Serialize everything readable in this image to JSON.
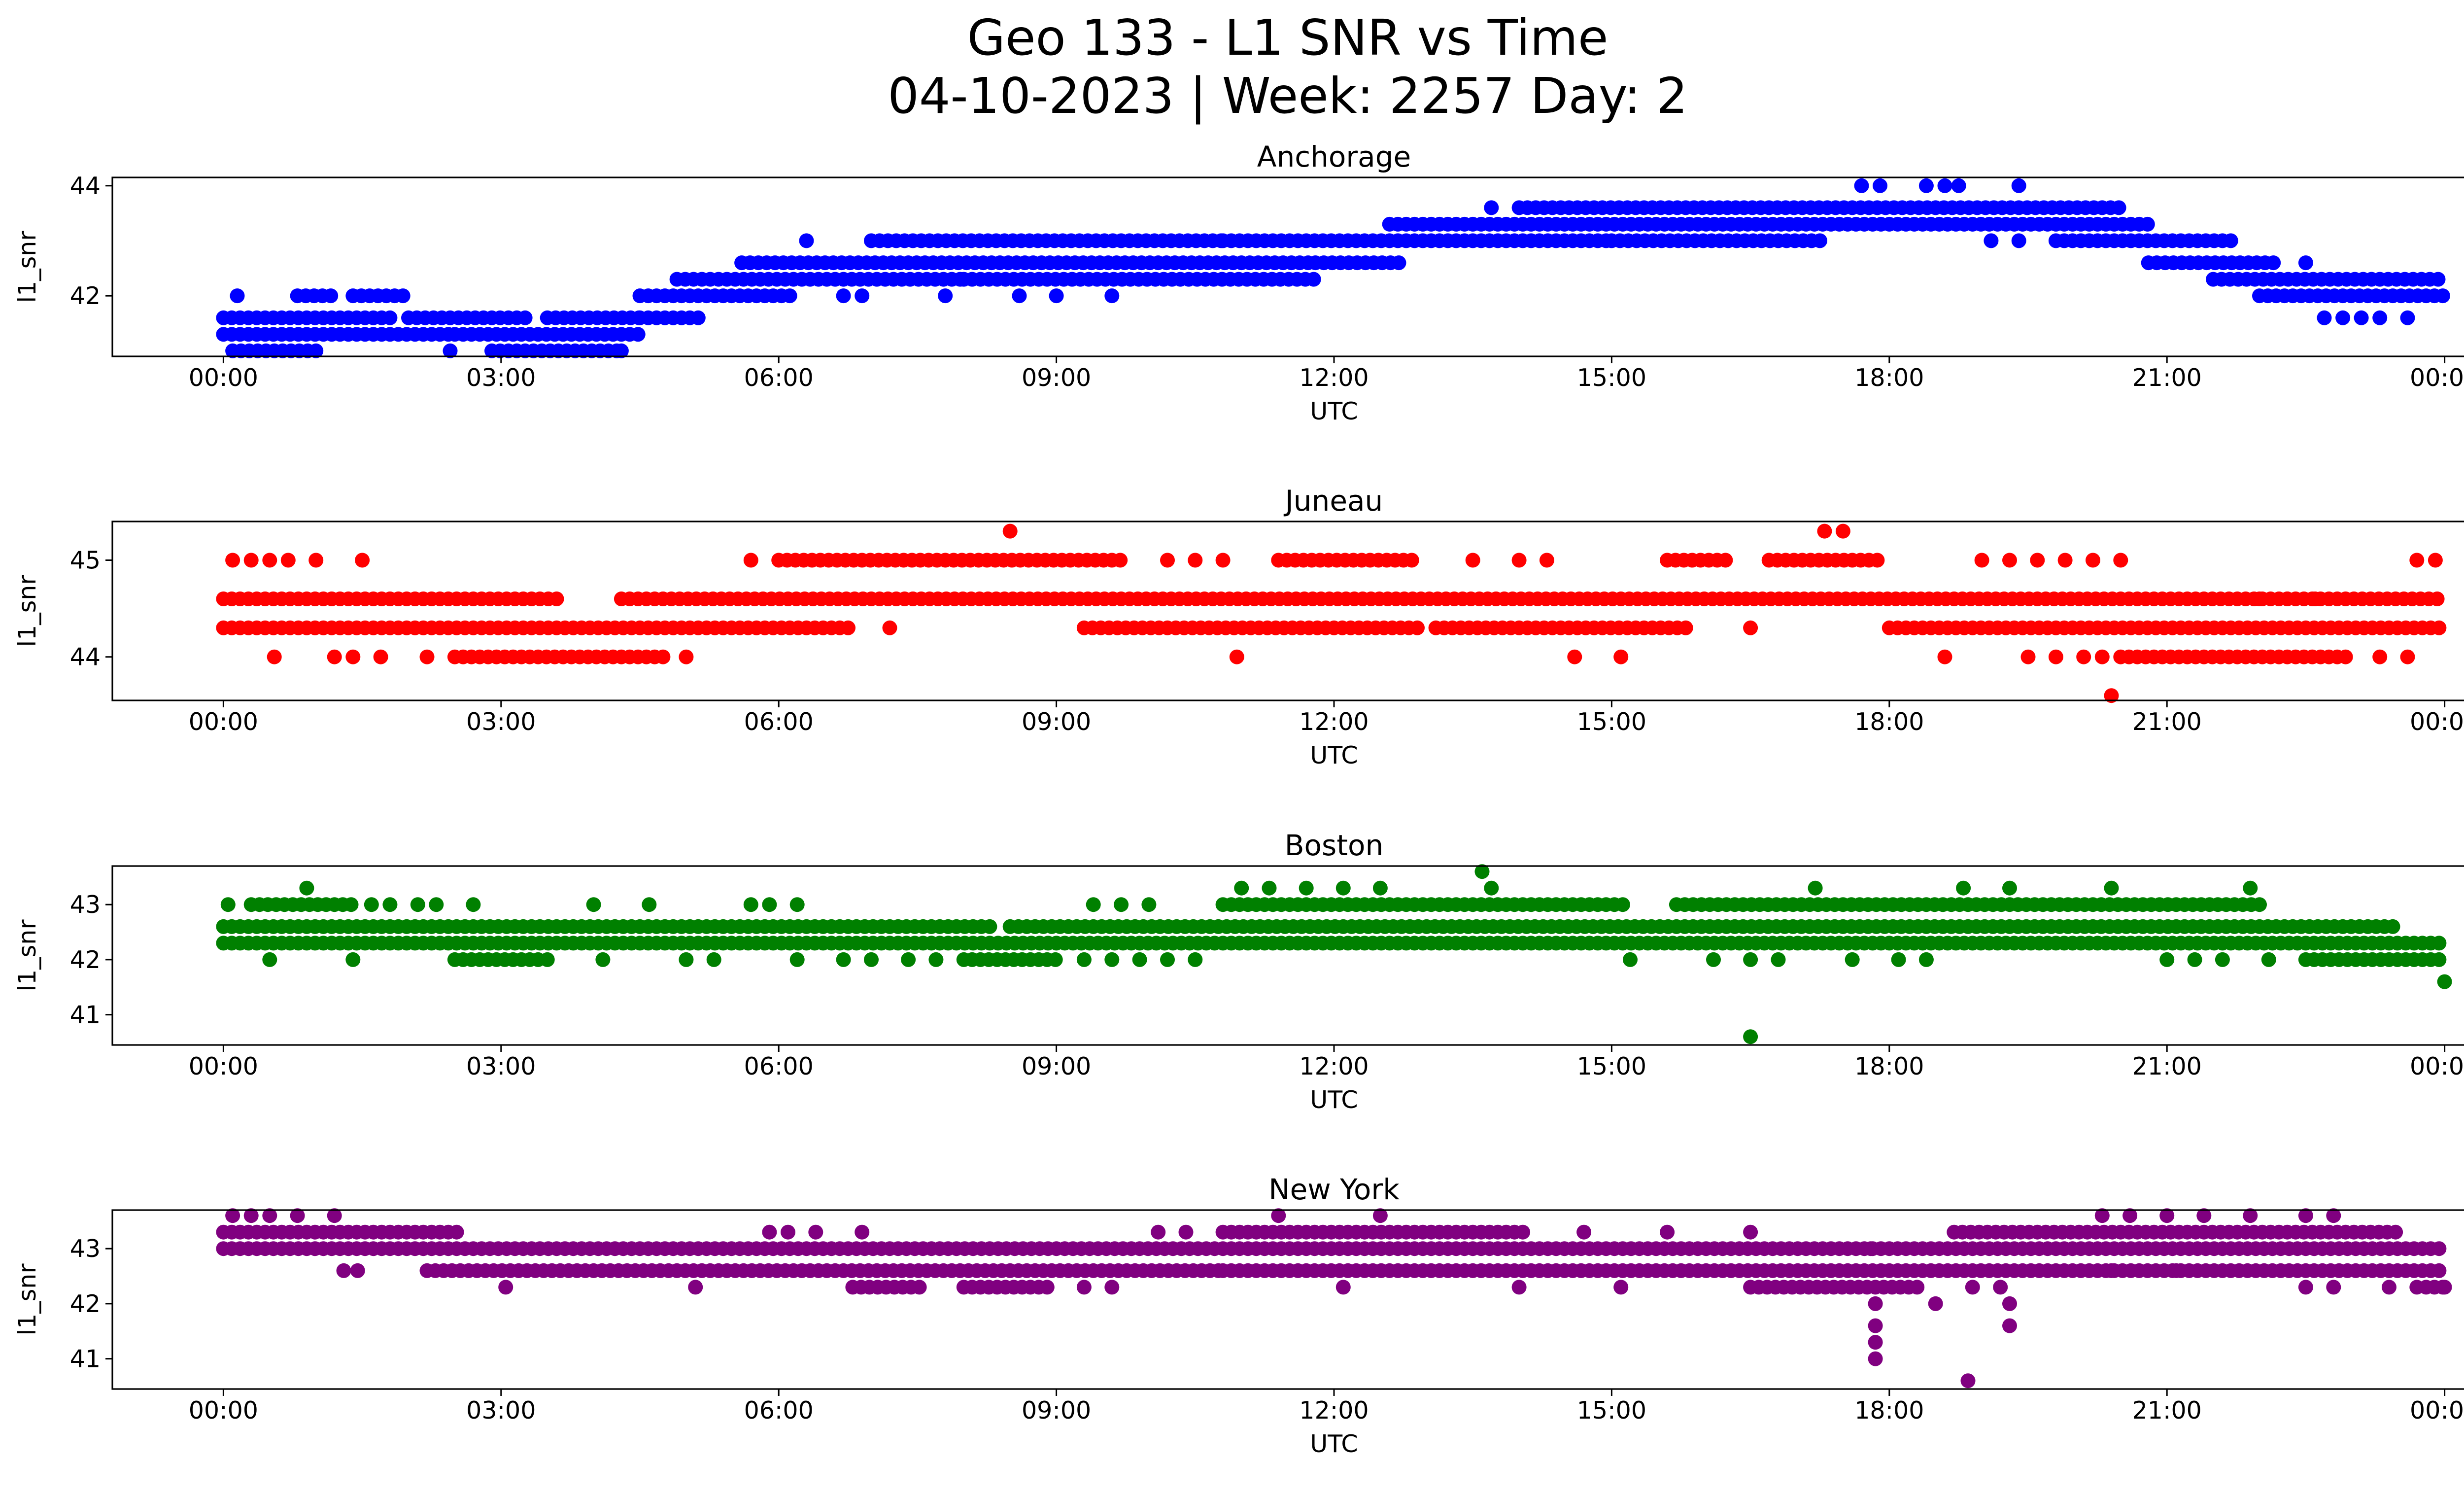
{
  "figure": {
    "title_line1": "Geo 133 - L1 SNR vs Time",
    "title_line2": "04-10-2023 | Week: 2257 Day: 2"
  },
  "chart_data": [
    {
      "type": "scatter",
      "title": "Anchorage",
      "xlabel": "UTC",
      "ylabel": "l1_snr",
      "color": "#0000ff",
      "x_unit": "hours UTC",
      "xlim": [
        -1.2,
        25.2
      ],
      "ylim": [
        40.9,
        44.15
      ],
      "xticks": [
        "00:00",
        "03:00",
        "06:00",
        "09:00",
        "12:00",
        "15:00",
        "18:00",
        "21:00",
        "00:00"
      ],
      "yticks": [
        42,
        44
      ],
      "segments": [
        {
          "y": 41.0,
          "from": 0.1,
          "to": 1.0
        },
        {
          "y": 41.3,
          "from": 0.0,
          "to": 2.5
        },
        {
          "y": 41.6,
          "from": 0.0,
          "to": 1.8
        },
        {
          "y": 42.0,
          "from": 0.8,
          "to": 1.2
        },
        {
          "y": 42.0,
          "from": 1.4,
          "to": 2.0
        },
        {
          "y": 41.3,
          "from": 2.5,
          "to": 4.5
        },
        {
          "y": 41.6,
          "from": 2.0,
          "to": 3.3
        },
        {
          "y": 41.0,
          "from": 2.9,
          "to": 4.3
        },
        {
          "y": 41.6,
          "from": 3.5,
          "to": 4.5
        },
        {
          "y": 41.6,
          "from": 4.5,
          "to": 5.2
        },
        {
          "y": 42.0,
          "from": 4.5,
          "to": 6.2
        },
        {
          "y": 42.3,
          "from": 4.9,
          "to": 8.0
        },
        {
          "y": 42.6,
          "from": 5.6,
          "to": 11.8
        },
        {
          "y": 42.3,
          "from": 8.0,
          "to": 11.8
        },
        {
          "y": 43.0,
          "from": 7.0,
          "to": 10.8
        },
        {
          "y": 42.6,
          "from": 11.8,
          "to": 12.7
        },
        {
          "y": 43.0,
          "from": 10.8,
          "to": 15.0
        },
        {
          "y": 43.3,
          "from": 12.6,
          "to": 20.8
        },
        {
          "y": 43.6,
          "from": 14.0,
          "to": 20.5
        },
        {
          "y": 43.0,
          "from": 15.0,
          "to": 17.3
        },
        {
          "y": 43.0,
          "from": 19.8,
          "to": 21.7
        },
        {
          "y": 42.6,
          "from": 20.8,
          "to": 22.2
        },
        {
          "y": 42.3,
          "from": 21.5,
          "to": 24.0
        },
        {
          "y": 42.0,
          "from": 22.0,
          "to": 24.0
        }
      ],
      "outliers": [
        {
          "x": 0.15,
          "y": 42.0
        },
        {
          "x": 2.45,
          "y": 41.0
        },
        {
          "x": 4.3,
          "y": 41.0
        },
        {
          "x": 6.3,
          "y": 43.0
        },
        {
          "x": 6.7,
          "y": 42.0
        },
        {
          "x": 6.9,
          "y": 42.0
        },
        {
          "x": 7.8,
          "y": 42.0
        },
        {
          "x": 8.6,
          "y": 42.0
        },
        {
          "x": 9.0,
          "y": 42.0
        },
        {
          "x": 9.6,
          "y": 42.0
        },
        {
          "x": 13.7,
          "y": 43.6
        },
        {
          "x": 17.7,
          "y": 44.0
        },
        {
          "x": 17.9,
          "y": 44.0
        },
        {
          "x": 18.4,
          "y": 44.0
        },
        {
          "x": 18.6,
          "y": 44.0
        },
        {
          "x": 18.75,
          "y": 44.0
        },
        {
          "x": 19.4,
          "y": 44.0
        },
        {
          "x": 19.1,
          "y": 43.0
        },
        {
          "x": 19.4,
          "y": 43.0
        },
        {
          "x": 22.5,
          "y": 42.6
        },
        {
          "x": 22.7,
          "y": 41.6
        },
        {
          "x": 22.9,
          "y": 41.6
        },
        {
          "x": 23.1,
          "y": 41.6
        },
        {
          "x": 23.3,
          "y": 41.6
        },
        {
          "x": 23.6,
          "y": 41.6
        }
      ]
    },
    {
      "type": "scatter",
      "title": "Juneau",
      "xlabel": "UTC",
      "ylabel": "l1_snr",
      "color": "#ff0000",
      "x_unit": "hours UTC",
      "xlim": [
        -1.2,
        25.2
      ],
      "ylim": [
        43.55,
        45.4
      ],
      "xticks": [
        "00:00",
        "03:00",
        "06:00",
        "09:00",
        "12:00",
        "15:00",
        "18:00",
        "21:00",
        "00:00"
      ],
      "yticks": [
        44,
        45
      ],
      "segments": [
        {
          "y": 44.6,
          "from": 0.0,
          "to": 3.6
        },
        {
          "y": 44.3,
          "from": 0.0,
          "to": 6.8
        },
        {
          "y": 44.0,
          "from": 2.5,
          "to": 4.8
        },
        {
          "y": 44.6,
          "from": 4.3,
          "to": 24.0
        },
        {
          "y": 44.3,
          "from": 9.3,
          "to": 12.9
        },
        {
          "y": 44.3,
          "from": 13.1,
          "to": 15.8
        },
        {
          "y": 45.0,
          "from": 6.0,
          "to": 9.7
        },
        {
          "y": 44.3,
          "from": 18.0,
          "to": 24.0
        },
        {
          "y": 44.0,
          "from": 20.5,
          "to": 23.0
        },
        {
          "y": 45.0,
          "from": 11.4,
          "to": 12.9
        },
        {
          "y": 45.0,
          "from": 16.7,
          "to": 17.9
        },
        {
          "y": 45.0,
          "from": 15.6,
          "to": 16.3
        }
      ],
      "outliers": [
        {
          "x": 0.1,
          "y": 45.0
        },
        {
          "x": 0.3,
          "y": 45.0
        },
        {
          "x": 0.5,
          "y": 45.0
        },
        {
          "x": 0.7,
          "y": 45.0
        },
        {
          "x": 1.0,
          "y": 45.0
        },
        {
          "x": 1.5,
          "y": 45.0
        },
        {
          "x": 0.55,
          "y": 44.0
        },
        {
          "x": 1.2,
          "y": 44.0
        },
        {
          "x": 1.4,
          "y": 44.0
        },
        {
          "x": 1.7,
          "y": 44.0
        },
        {
          "x": 2.2,
          "y": 44.0
        },
        {
          "x": 5.0,
          "y": 44.0
        },
        {
          "x": 5.7,
          "y": 45.0
        },
        {
          "x": 8.5,
          "y": 45.3
        },
        {
          "x": 7.2,
          "y": 44.3
        },
        {
          "x": 10.2,
          "y": 45.0
        },
        {
          "x": 10.5,
          "y": 45.0
        },
        {
          "x": 10.8,
          "y": 45.0
        },
        {
          "x": 10.95,
          "y": 44.0
        },
        {
          "x": 13.5,
          "y": 45.0
        },
        {
          "x": 14.0,
          "y": 45.0
        },
        {
          "x": 14.3,
          "y": 45.0
        },
        {
          "x": 14.6,
          "y": 44.0
        },
        {
          "x": 15.1,
          "y": 44.0
        },
        {
          "x": 16.5,
          "y": 44.3
        },
        {
          "x": 17.3,
          "y": 45.3
        },
        {
          "x": 17.5,
          "y": 45.3
        },
        {
          "x": 18.6,
          "y": 44.0
        },
        {
          "x": 19.0,
          "y": 45.0
        },
        {
          "x": 19.3,
          "y": 45.0
        },
        {
          "x": 19.6,
          "y": 45.0
        },
        {
          "x": 19.9,
          "y": 45.0
        },
        {
          "x": 20.2,
          "y": 45.0
        },
        {
          "x": 20.5,
          "y": 45.0
        },
        {
          "x": 19.5,
          "y": 44.0
        },
        {
          "x": 19.8,
          "y": 44.0
        },
        {
          "x": 20.1,
          "y": 44.0
        },
        {
          "x": 20.3,
          "y": 44.0
        },
        {
          "x": 20.4,
          "y": 43.6
        },
        {
          "x": 23.3,
          "y": 44.0
        },
        {
          "x": 23.6,
          "y": 44.0
        },
        {
          "x": 23.7,
          "y": 45.0
        },
        {
          "x": 23.9,
          "y": 45.0
        },
        {
          "x": 22.0,
          "y": 44.6
        },
        {
          "x": 22.3,
          "y": 44.6
        },
        {
          "x": 22.6,
          "y": 44.6
        }
      ]
    },
    {
      "type": "scatter",
      "title": "Boston",
      "xlabel": "UTC",
      "ylabel": "l1_snr",
      "color": "#008000",
      "x_unit": "hours UTC",
      "xlim": [
        -1.2,
        25.2
      ],
      "ylim": [
        40.45,
        43.7
      ],
      "xticks": [
        "00:00",
        "03:00",
        "06:00",
        "09:00",
        "12:00",
        "15:00",
        "18:00",
        "21:00",
        "00:00"
      ],
      "yticks": [
        41,
        42,
        43
      ],
      "segments": [
        {
          "y": 42.6,
          "from": 0.0,
          "to": 8.3
        },
        {
          "y": 42.3,
          "from": 0.0,
          "to": 24.0
        },
        {
          "y": 42.6,
          "from": 8.5,
          "to": 23.5
        },
        {
          "y": 43.0,
          "from": 10.8,
          "to": 15.2
        },
        {
          "y": 43.0,
          "from": 15.7,
          "to": 22.0
        },
        {
          "y": 42.0,
          "from": 2.5,
          "to": 3.4
        },
        {
          "y": 42.0,
          "from": 8.0,
          "to": 9.0
        },
        {
          "y": 42.0,
          "from": 22.5,
          "to": 24.0
        },
        {
          "y": 43.0,
          "from": 0.3,
          "to": 1.4
        }
      ],
      "outliers": [
        {
          "x": 0.05,
          "y": 43.0
        },
        {
          "x": 0.5,
          "y": 42.0
        },
        {
          "x": 0.9,
          "y": 43.3
        },
        {
          "x": 1.4,
          "y": 42.0
        },
        {
          "x": 1.6,
          "y": 43.0
        },
        {
          "x": 1.8,
          "y": 43.0
        },
        {
          "x": 2.1,
          "y": 43.0
        },
        {
          "x": 2.3,
          "y": 43.0
        },
        {
          "x": 2.7,
          "y": 43.0
        },
        {
          "x": 3.5,
          "y": 42.0
        },
        {
          "x": 4.0,
          "y": 43.0
        },
        {
          "x": 4.1,
          "y": 42.0
        },
        {
          "x": 4.6,
          "y": 43.0
        },
        {
          "x": 5.0,
          "y": 42.0
        },
        {
          "x": 5.3,
          "y": 42.0
        },
        {
          "x": 5.7,
          "y": 43.0
        },
        {
          "x": 5.9,
          "y": 43.0
        },
        {
          "x": 6.2,
          "y": 43.0
        },
        {
          "x": 6.2,
          "y": 42.0
        },
        {
          "x": 6.7,
          "y": 42.0
        },
        {
          "x": 7.0,
          "y": 42.0
        },
        {
          "x": 7.4,
          "y": 42.0
        },
        {
          "x": 7.7,
          "y": 42.0
        },
        {
          "x": 9.3,
          "y": 42.0
        },
        {
          "x": 9.6,
          "y": 42.0
        },
        {
          "x": 9.9,
          "y": 42.0
        },
        {
          "x": 10.2,
          "y": 42.0
        },
        {
          "x": 10.5,
          "y": 42.0
        },
        {
          "x": 9.4,
          "y": 43.0
        },
        {
          "x": 9.7,
          "y": 43.0
        },
        {
          "x": 10.0,
          "y": 43.0
        },
        {
          "x": 11.0,
          "y": 43.3
        },
        {
          "x": 11.3,
          "y": 43.3
        },
        {
          "x": 11.7,
          "y": 43.3
        },
        {
          "x": 12.1,
          "y": 43.3
        },
        {
          "x": 12.5,
          "y": 43.3
        },
        {
          "x": 13.6,
          "y": 43.6
        },
        {
          "x": 13.7,
          "y": 43.3
        },
        {
          "x": 15.2,
          "y": 42.0
        },
        {
          "x": 16.1,
          "y": 42.0
        },
        {
          "x": 16.5,
          "y": 42.0
        },
        {
          "x": 16.5,
          "y": 40.6
        },
        {
          "x": 16.8,
          "y": 42.0
        },
        {
          "x": 17.2,
          "y": 43.3
        },
        {
          "x": 17.6,
          "y": 42.0
        },
        {
          "x": 18.1,
          "y": 42.0
        },
        {
          "x": 18.4,
          "y": 42.0
        },
        {
          "x": 18.8,
          "y": 43.3
        },
        {
          "x": 19.3,
          "y": 43.3
        },
        {
          "x": 20.4,
          "y": 43.3
        },
        {
          "x": 21.0,
          "y": 42.0
        },
        {
          "x": 21.3,
          "y": 42.0
        },
        {
          "x": 21.6,
          "y": 42.0
        },
        {
          "x": 21.9,
          "y": 43.3
        },
        {
          "x": 22.1,
          "y": 42.0
        },
        {
          "x": 24.0,
          "y": 41.6
        }
      ]
    },
    {
      "type": "scatter",
      "title": "New York",
      "xlabel": "UTC",
      "ylabel": "l1_snr",
      "color": "#800080",
      "x_unit": "hours UTC",
      "xlim": [
        -1.2,
        25.2
      ],
      "ylim": [
        40.45,
        43.7
      ],
      "xticks": [
        "00:00",
        "03:00",
        "06:00",
        "09:00",
        "12:00",
        "15:00",
        "18:00",
        "21:00",
        "00:00"
      ],
      "yticks": [
        41,
        42,
        43
      ],
      "segments": [
        {
          "y": 43.0,
          "from": 0.0,
          "to": 24.0
        },
        {
          "y": 43.3,
          "from": 0.0,
          "to": 2.6
        },
        {
          "y": 42.6,
          "from": 2.2,
          "to": 10.8
        },
        {
          "y": 42.6,
          "from": 10.8,
          "to": 24.0
        },
        {
          "y": 42.3,
          "from": 6.8,
          "to": 7.6
        },
        {
          "y": 42.3,
          "from": 8.0,
          "to": 8.9
        },
        {
          "y": 42.3,
          "from": 16.5,
          "to": 18.3
        },
        {
          "y": 43.3,
          "from": 10.8,
          "to": 14.1
        },
        {
          "y": 43.3,
          "from": 18.7,
          "to": 23.5
        },
        {
          "y": 42.3,
          "from": 23.8,
          "to": 24.0
        }
      ],
      "outliers": [
        {
          "x": 0.1,
          "y": 43.6
        },
        {
          "x": 0.3,
          "y": 43.6
        },
        {
          "x": 0.5,
          "y": 43.6
        },
        {
          "x": 0.8,
          "y": 43.6
        },
        {
          "x": 1.2,
          "y": 43.6
        },
        {
          "x": 1.3,
          "y": 42.6
        },
        {
          "x": 1.45,
          "y": 42.6
        },
        {
          "x": 3.05,
          "y": 42.3
        },
        {
          "x": 5.1,
          "y": 42.3
        },
        {
          "x": 5.9,
          "y": 43.3
        },
        {
          "x": 6.1,
          "y": 43.3
        },
        {
          "x": 6.4,
          "y": 43.3
        },
        {
          "x": 6.9,
          "y": 43.3
        },
        {
          "x": 9.3,
          "y": 42.3
        },
        {
          "x": 9.6,
          "y": 42.3
        },
        {
          "x": 10.1,
          "y": 43.3
        },
        {
          "x": 10.4,
          "y": 43.3
        },
        {
          "x": 11.4,
          "y": 43.6
        },
        {
          "x": 12.1,
          "y": 42.3
        },
        {
          "x": 12.5,
          "y": 43.6
        },
        {
          "x": 14.0,
          "y": 42.3
        },
        {
          "x": 14.7,
          "y": 43.3
        },
        {
          "x": 15.1,
          "y": 42.3
        },
        {
          "x": 15.6,
          "y": 43.3
        },
        {
          "x": 16.5,
          "y": 43.3
        },
        {
          "x": 17.8,
          "y": 43.0
        },
        {
          "x": 17.85,
          "y": 42.0
        },
        {
          "x": 17.85,
          "y": 41.6
        },
        {
          "x": 17.85,
          "y": 41.3
        },
        {
          "x": 17.85,
          "y": 41.0
        },
        {
          "x": 18.5,
          "y": 42.0
        },
        {
          "x": 18.9,
          "y": 42.3
        },
        {
          "x": 18.85,
          "y": 40.6
        },
        {
          "x": 19.2,
          "y": 42.3
        },
        {
          "x": 19.3,
          "y": 42.0
        },
        {
          "x": 19.3,
          "y": 41.6
        },
        {
          "x": 20.3,
          "y": 43.6
        },
        {
          "x": 20.6,
          "y": 43.6
        },
        {
          "x": 21.0,
          "y": 43.6
        },
        {
          "x": 21.4,
          "y": 43.6
        },
        {
          "x": 21.9,
          "y": 43.6
        },
        {
          "x": 22.5,
          "y": 43.6
        },
        {
          "x": 22.8,
          "y": 43.6
        },
        {
          "x": 20.4,
          "y": 42.6
        },
        {
          "x": 21.1,
          "y": 42.6
        },
        {
          "x": 22.5,
          "y": 42.3
        },
        {
          "x": 22.8,
          "y": 42.3
        },
        {
          "x": 23.4,
          "y": 42.3
        },
        {
          "x": 23.7,
          "y": 42.3
        },
        {
          "x": 24.0,
          "y": 42.3
        }
      ]
    }
  ]
}
